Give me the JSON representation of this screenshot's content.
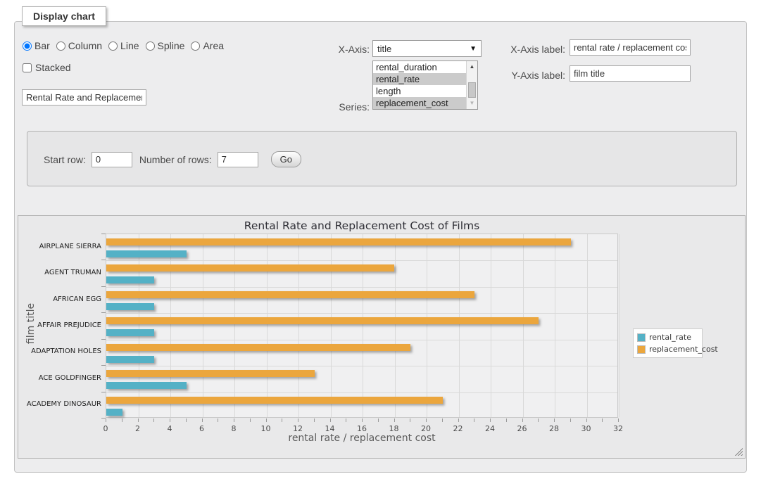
{
  "panel": {
    "legend": "Display chart"
  },
  "chart_type": {
    "options": [
      {
        "label": "Bar",
        "checked": true
      },
      {
        "label": "Column",
        "checked": false
      },
      {
        "label": "Line",
        "checked": false
      },
      {
        "label": "Spline",
        "checked": false
      },
      {
        "label": "Area",
        "checked": false
      }
    ]
  },
  "stacked": {
    "label": "Stacked",
    "checked": false
  },
  "title_input": {
    "value": "Rental Rate and Replacemer"
  },
  "x_axis_select": {
    "label": "X-Axis:",
    "value": "title"
  },
  "series_select": {
    "label": "Series:",
    "options": [
      {
        "label": "rental_duration",
        "selected": false
      },
      {
        "label": "rental_rate",
        "selected": true
      },
      {
        "label": "length",
        "selected": false
      },
      {
        "label": "replacement_cost",
        "selected": true
      }
    ],
    "up_arrow": "▲",
    "down_arrow": "▼"
  },
  "x_axis_label_field": {
    "label": "X-Axis label:",
    "value": "rental rate / replacement cost"
  },
  "y_axis_label_field": {
    "label": "Y-Axis label:",
    "value": "film title"
  },
  "row_controls": {
    "start_row_label": "Start row:",
    "start_row_value": "0",
    "num_rows_label": "Number of rows:",
    "num_rows_value": "7",
    "go_label": "Go"
  },
  "select_arrow": "▼",
  "chart_data": {
    "type": "bar",
    "orientation": "horizontal",
    "title": "Rental Rate and Replacement Cost of Films",
    "xlabel": "rental rate / replacement cost",
    "ylabel": "film title",
    "categories": [
      "AIRPLANE SIERRA",
      "AGENT TRUMAN",
      "AFRICAN EGG",
      "AFFAIR PREJUDICE",
      "ADAPTATION HOLES",
      "ACE GOLDFINGER",
      "ACADEMY DINOSAUR"
    ],
    "series": [
      {
        "name": "rental_rate",
        "color": "#54b1c6",
        "values": [
          4.99,
          2.99,
          2.99,
          2.99,
          2.99,
          4.99,
          0.99
        ]
      },
      {
        "name": "replacement_cost",
        "color": "#eba63d",
        "values": [
          28.99,
          17.99,
          22.99,
          26.99,
          18.99,
          12.99,
          20.99
        ]
      }
    ],
    "series_order_top_first": [
      "replacement_cost",
      "rental_rate"
    ],
    "xlim": [
      0,
      32
    ],
    "xtick_step": 2,
    "minor_tick_step": 1,
    "grid": true,
    "legend_position": "right-middle"
  }
}
